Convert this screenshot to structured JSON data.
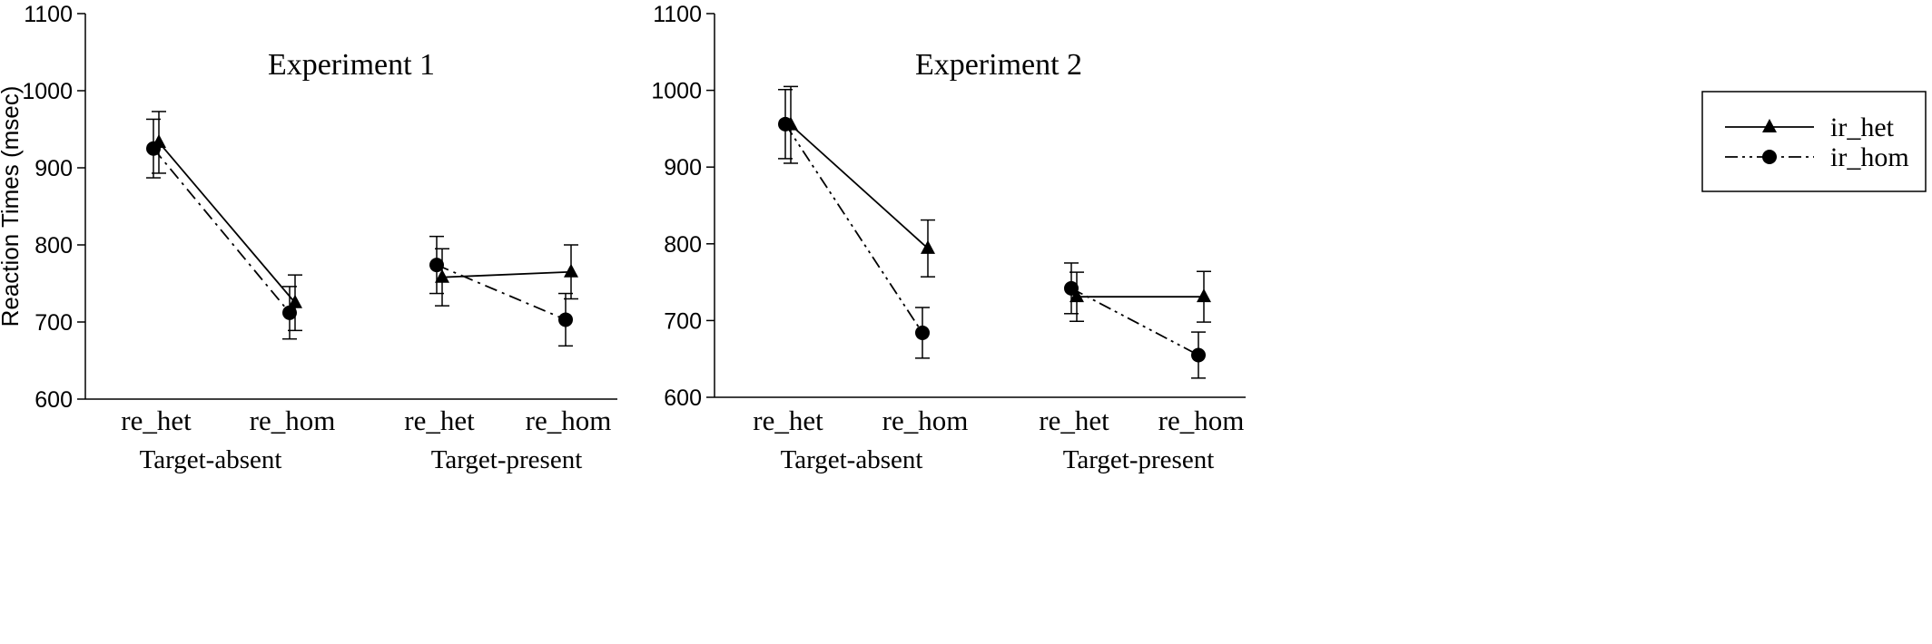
{
  "chart_data": [
    {
      "type": "line",
      "title": "Experiment 1",
      "ylabel": "Reaction Times (msec)",
      "ylim": [
        600,
        1100
      ],
      "yticks": [
        "600",
        "700",
        "800",
        "900",
        "1000",
        "1100"
      ],
      "categories": [
        "re_het",
        "re_hom",
        "re_het",
        "re_hom"
      ],
      "groups": [
        "Target-absent",
        "Target-present"
      ],
      "series": [
        {
          "name": "ir_het",
          "marker": "triangle",
          "line": "solid",
          "values": [
            933,
            725,
            758,
            765
          ],
          "error": [
            40,
            36,
            37,
            35
          ]
        },
        {
          "name": "ir_hom",
          "marker": "circle",
          "line": "dash-dot",
          "values": [
            925,
            712,
            774,
            703
          ],
          "error": [
            38,
            34,
            37,
            34
          ]
        }
      ]
    },
    {
      "type": "line",
      "title": "Experiment 2",
      "ylabel": "",
      "ylim": [
        600,
        1100
      ],
      "yticks": [
        "600",
        "700",
        "800",
        "900",
        "1000",
        "1100"
      ],
      "categories": [
        "re_het",
        "re_hom",
        "re_het",
        "re_hom"
      ],
      "groups": [
        "Target-absent",
        "Target-present"
      ],
      "series": [
        {
          "name": "ir_het",
          "marker": "triangle",
          "line": "solid",
          "values": [
            955,
            794,
            731,
            731
          ],
          "error": [
            50,
            37,
            32,
            33
          ]
        },
        {
          "name": "ir_hom",
          "marker": "circle",
          "line": "dash-dot-dot",
          "values": [
            956,
            684,
            742,
            655
          ],
          "error": [
            45,
            33,
            33,
            30
          ]
        }
      ],
      "legend": {
        "position": "right",
        "entries": [
          "ir_het",
          "ir_hom"
        ]
      }
    }
  ]
}
